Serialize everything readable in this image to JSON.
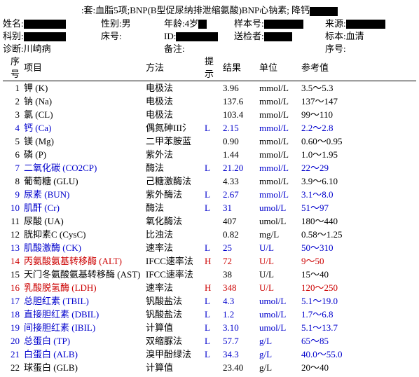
{
  "header": {
    "title_prefix": ":套:",
    "title": "血脂5项;BNP(B型促尿纳排泄缩氨酸)BNP心钠素; 降钙",
    "row1": {
      "name_lbl": "姓名:",
      "name_w": 60,
      "sex_lbl": "性别:",
      "sex_val": "男",
      "age_lbl": "年龄:",
      "age_val": "4岁",
      "age_w": 12,
      "sample_lbl": "样本号:",
      "sample_w": 56,
      "src_lbl": "来源:",
      "src_w": 56
    },
    "row2": {
      "dept_lbl": "科别:",
      "dept_w": 60,
      "bed_lbl": "床号:",
      "id_lbl": "ID:",
      "id_w": 60,
      "sender_lbl": "送检者:",
      "sender_w": 40,
      "spec_lbl": "标本:",
      "spec_val": "血清"
    },
    "row3": {
      "diag_lbl": "诊断:",
      "diag_val": "川崎病",
      "note_lbl": "备注:",
      "seq_lbl": "序号:"
    }
  },
  "columns": {
    "idx": "序号",
    "item": "项目",
    "method": "方法",
    "flag": "提示",
    "result": "结果",
    "unit": "单位",
    "ref": "参考值"
  },
  "rows": [
    {
      "idx": "1",
      "item": "钾 (K)",
      "method": "电极法",
      "flag": "",
      "result": "3.96",
      "unit": "mmol/L",
      "ref": "3.5～5.3",
      "color": ""
    },
    {
      "idx": "2",
      "item": "钠 (Na)",
      "method": "电极法",
      "flag": "",
      "result": "137.6",
      "unit": "mmol/L",
      "ref": "137～147",
      "color": ""
    },
    {
      "idx": "3",
      "item": "氯 (CL)",
      "method": "电极法",
      "flag": "",
      "result": "103.4",
      "unit": "mmol/L",
      "ref": "99～110",
      "color": ""
    },
    {
      "idx": "4",
      "item": "钙 (Ca)",
      "method": "偶氮砷III氵",
      "flag": "L",
      "result": "2.15",
      "unit": "mmol/L",
      "ref": "2.2～2.8",
      "color": "blue"
    },
    {
      "idx": "5",
      "item": "镁 (Mg)",
      "method": "二甲苯胺蓝",
      "flag": "",
      "result": "0.90",
      "unit": "mmol/L",
      "ref": "0.60～0.95",
      "color": ""
    },
    {
      "idx": "6",
      "item": "磷 (P)",
      "method": "紫外法",
      "flag": "",
      "result": "1.44",
      "unit": "mmol/L",
      "ref": "1.0～1.95",
      "color": ""
    },
    {
      "idx": "7",
      "item": "二氧化碳 (CO2CP)",
      "method": "酶法",
      "flag": "L",
      "result": "21.20",
      "unit": "mmol/L",
      "ref": "22～29",
      "color": "blue"
    },
    {
      "idx": "8",
      "item": "葡萄糖 (GLU)",
      "method": "己糖激酶法",
      "flag": "",
      "result": "4.33",
      "unit": "mmol/L",
      "ref": "3.9～6.10",
      "color": ""
    },
    {
      "idx": "9",
      "item": "尿素 (BUN)",
      "method": "紫外酶法",
      "flag": "L",
      "result": "2.67",
      "unit": "mmol/L",
      "ref": "3.1～8.0",
      "color": "blue"
    },
    {
      "idx": "10",
      "item": "肌酐 (Cr)",
      "method": "酶法",
      "flag": "L",
      "result": "31",
      "unit": "umol/L",
      "ref": "51～97",
      "color": "blue"
    },
    {
      "idx": "11",
      "item": "尿酸 (UA)",
      "method": "氧化酶法",
      "flag": "",
      "result": "407",
      "unit": "umol/L",
      "ref": "180～440",
      "color": ""
    },
    {
      "idx": "12",
      "item": "胱抑素C (CysC)",
      "method": "比浊法",
      "flag": "",
      "result": "0.82",
      "unit": "mg/L",
      "ref": "0.58～1.25",
      "color": ""
    },
    {
      "idx": "13",
      "item": "肌酸激酶 (CK)",
      "method": "速率法",
      "flag": "L",
      "result": "25",
      "unit": "U/L",
      "ref": "50～310",
      "color": "blue"
    },
    {
      "idx": "14",
      "item": "丙氨酸氨基转移酶 (ALT)",
      "method": "IFCC速率法",
      "flag": "H",
      "result": "72",
      "unit": "U/L",
      "ref": "9～50",
      "color": "red"
    },
    {
      "idx": "15",
      "item": "天门冬氨酸氨基转移酶 (AST)",
      "method": "IFCC速率法",
      "flag": "",
      "result": "38",
      "unit": "U/L",
      "ref": "15～40",
      "color": ""
    },
    {
      "idx": "16",
      "item": "乳酸脱氢酶 (LDH)",
      "method": "速率法",
      "flag": "H",
      "result": "348",
      "unit": "U/L",
      "ref": "120～250",
      "color": "red"
    },
    {
      "idx": "17",
      "item": "总胆红素 (TBIL)",
      "method": "钒酸盐法",
      "flag": "L",
      "result": "4.3",
      "unit": "umol/L",
      "ref": "5.1～19.0",
      "color": "blue"
    },
    {
      "idx": "18",
      "item": "直接胆红素 (DBIL)",
      "method": "钒酸盐法",
      "flag": "L",
      "result": "1.2",
      "unit": "umol/L",
      "ref": "1.7～6.8",
      "color": "blue"
    },
    {
      "idx": "19",
      "item": "间接胆红素 (IBIL)",
      "method": "计算值",
      "flag": "L",
      "result": "3.10",
      "unit": "umol/L",
      "ref": "5.1～13.7",
      "color": "blue"
    },
    {
      "idx": "20",
      "item": "总蛋白 (TP)",
      "method": "双缩脲法",
      "flag": "L",
      "result": "57.7",
      "unit": "g/L",
      "ref": "65～85",
      "color": "blue"
    },
    {
      "idx": "21",
      "item": "白蛋白 (ALB)",
      "method": "溴甲酚绿法",
      "flag": "L",
      "result": "34.3",
      "unit": "g/L",
      "ref": "40.0～55.0",
      "color": "blue"
    },
    {
      "idx": "22",
      "item": "球蛋白 (GLB)",
      "method": "计算值",
      "flag": "",
      "result": "23.40",
      "unit": "g/L",
      "ref": "20～40",
      "color": ""
    }
  ]
}
